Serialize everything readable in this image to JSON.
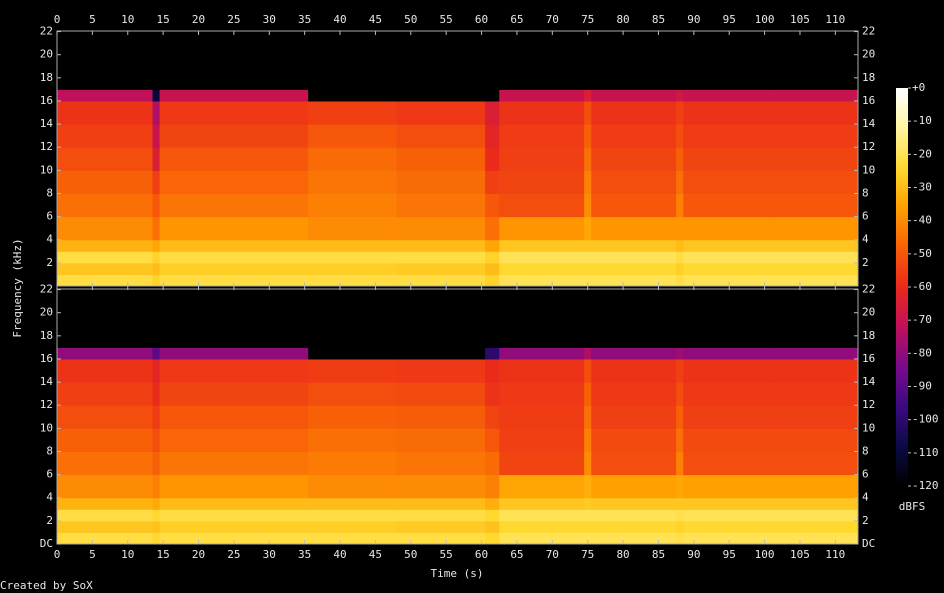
{
  "chart_data": {
    "type": "heatmap",
    "xlabel": "Time (s)",
    "ylabel": "Frequency (kHz)",
    "colorbar_label": "dBFS",
    "footer": "Created by SoX",
    "xlim": [
      0,
      113.2
    ],
    "xticks": [
      0,
      5,
      10,
      15,
      20,
      25,
      30,
      35,
      40,
      45,
      50,
      55,
      60,
      65,
      70,
      75,
      80,
      85,
      90,
      95,
      100,
      105,
      110
    ],
    "time_edges": [
      0,
      13.5,
      14.5,
      35.5,
      48,
      60.5,
      62.5,
      74.5,
      75.5,
      87.5,
      88.5,
      100.5,
      113.2
    ],
    "freq_edges": [
      0,
      1,
      2,
      3,
      4,
      6,
      8,
      10,
      12,
      14,
      16,
      17,
      22.05
    ],
    "zlim": [
      -120,
      0
    ],
    "zticks": [
      {
        "value": 0,
        "label": "+0"
      },
      -10,
      -20,
      -30,
      -40,
      -50,
      -60,
      -70,
      -80,
      -90,
      -100,
      -110,
      -120
    ],
    "colorscale": [
      "#000000",
      "#0c0a46",
      "#3a0a82",
      "#7a0a8c",
      "#c0105a",
      "#ea2a1a",
      "#f86008",
      "#ffa000",
      "#ffd830",
      "#fff6a0",
      "#ffffff"
    ],
    "channels": [
      {
        "ylim": [
          0,
          22.05
        ],
        "yticks": [
          2,
          4,
          6,
          8,
          10,
          12,
          14,
          16,
          18,
          20,
          22
        ],
        "values": [
          [
            -22,
            -25,
            -22,
            -22,
            -22,
            -25,
            -20,
            -20,
            -20,
            -22,
            -20,
            -20
          ],
          [
            -28,
            -30,
            -26,
            -26,
            -27,
            -30,
            -24,
            -24,
            -24,
            -26,
            -24,
            -24
          ],
          [
            -22,
            -25,
            -22,
            -22,
            -22,
            -25,
            -20,
            -20,
            -20,
            -22,
            -20,
            -20
          ],
          [
            -32,
            -35,
            -30,
            -30,
            -30,
            -35,
            -28,
            -28,
            -28,
            -30,
            -28,
            -28
          ],
          [
            -40,
            -45,
            -38,
            -40,
            -40,
            -45,
            -38,
            -35,
            -38,
            -38,
            -38,
            -38
          ],
          [
            -45,
            -50,
            -44,
            -42,
            -44,
            -50,
            -52,
            -40,
            -50,
            -42,
            -50,
            -50
          ],
          [
            -48,
            -55,
            -47,
            -44,
            -46,
            -55,
            -54,
            -42,
            -52,
            -45,
            -52,
            -52
          ],
          [
            -52,
            -65,
            -50,
            -46,
            -48,
            -60,
            -55,
            -45,
            -54,
            -48,
            -54,
            -54
          ],
          [
            -55,
            -70,
            -54,
            -50,
            -52,
            -62,
            -56,
            -48,
            -56,
            -52,
            -56,
            -56
          ],
          [
            -58,
            -75,
            -57,
            -55,
            -57,
            -65,
            -58,
            -52,
            -58,
            -55,
            -58,
            -58
          ],
          [
            -72,
            -110,
            -70,
            -120,
            -120,
            -120,
            -70,
            -65,
            -70,
            -68,
            -70,
            -70
          ],
          [
            -120,
            -120,
            -120,
            -120,
            -120,
            -120,
            -120,
            -120,
            -120,
            -120,
            -120,
            -120
          ]
        ]
      },
      {
        "ylim": [
          0,
          22.05
        ],
        "yticks": [
          {
            "value": 0,
            "label": "DC"
          },
          2,
          4,
          6,
          8,
          10,
          12,
          14,
          16,
          18,
          20,
          22
        ],
        "values": [
          [
            -22,
            -24,
            -22,
            -22,
            -22,
            -24,
            -20,
            -20,
            -20,
            -21,
            -20,
            -20
          ],
          [
            -28,
            -29,
            -26,
            -26,
            -27,
            -29,
            -24,
            -24,
            -24,
            -25,
            -24,
            -24
          ],
          [
            -22,
            -24,
            -22,
            -22,
            -22,
            -24,
            -20,
            -20,
            -20,
            -21,
            -20,
            -20
          ],
          [
            -32,
            -34,
            -30,
            -30,
            -30,
            -33,
            -28,
            -27,
            -28,
            -28,
            -28,
            -28
          ],
          [
            -40,
            -42,
            -38,
            -40,
            -40,
            -42,
            -35,
            -33,
            -36,
            -35,
            -36,
            -36
          ],
          [
            -45,
            -48,
            -44,
            -43,
            -44,
            -46,
            -54,
            -40,
            -52,
            -42,
            -52,
            -52
          ],
          [
            -48,
            -52,
            -47,
            -45,
            -46,
            -50,
            -55,
            -42,
            -53,
            -45,
            -53,
            -53
          ],
          [
            -52,
            -56,
            -50,
            -48,
            -49,
            -54,
            -56,
            -45,
            -55,
            -48,
            -55,
            -55
          ],
          [
            -55,
            -60,
            -54,
            -52,
            -53,
            -58,
            -57,
            -48,
            -57,
            -52,
            -57,
            -57
          ],
          [
            -58,
            -62,
            -57,
            -56,
            -57,
            -60,
            -58,
            -52,
            -58,
            -55,
            -58,
            -58
          ],
          [
            -80,
            -90,
            -80,
            -120,
            -120,
            -100,
            -80,
            -75,
            -80,
            -78,
            -80,
            -80
          ],
          [
            -120,
            -120,
            -120,
            -120,
            -120,
            -120,
            -120,
            -120,
            -120,
            -120,
            -120,
            -120
          ]
        ]
      }
    ]
  }
}
